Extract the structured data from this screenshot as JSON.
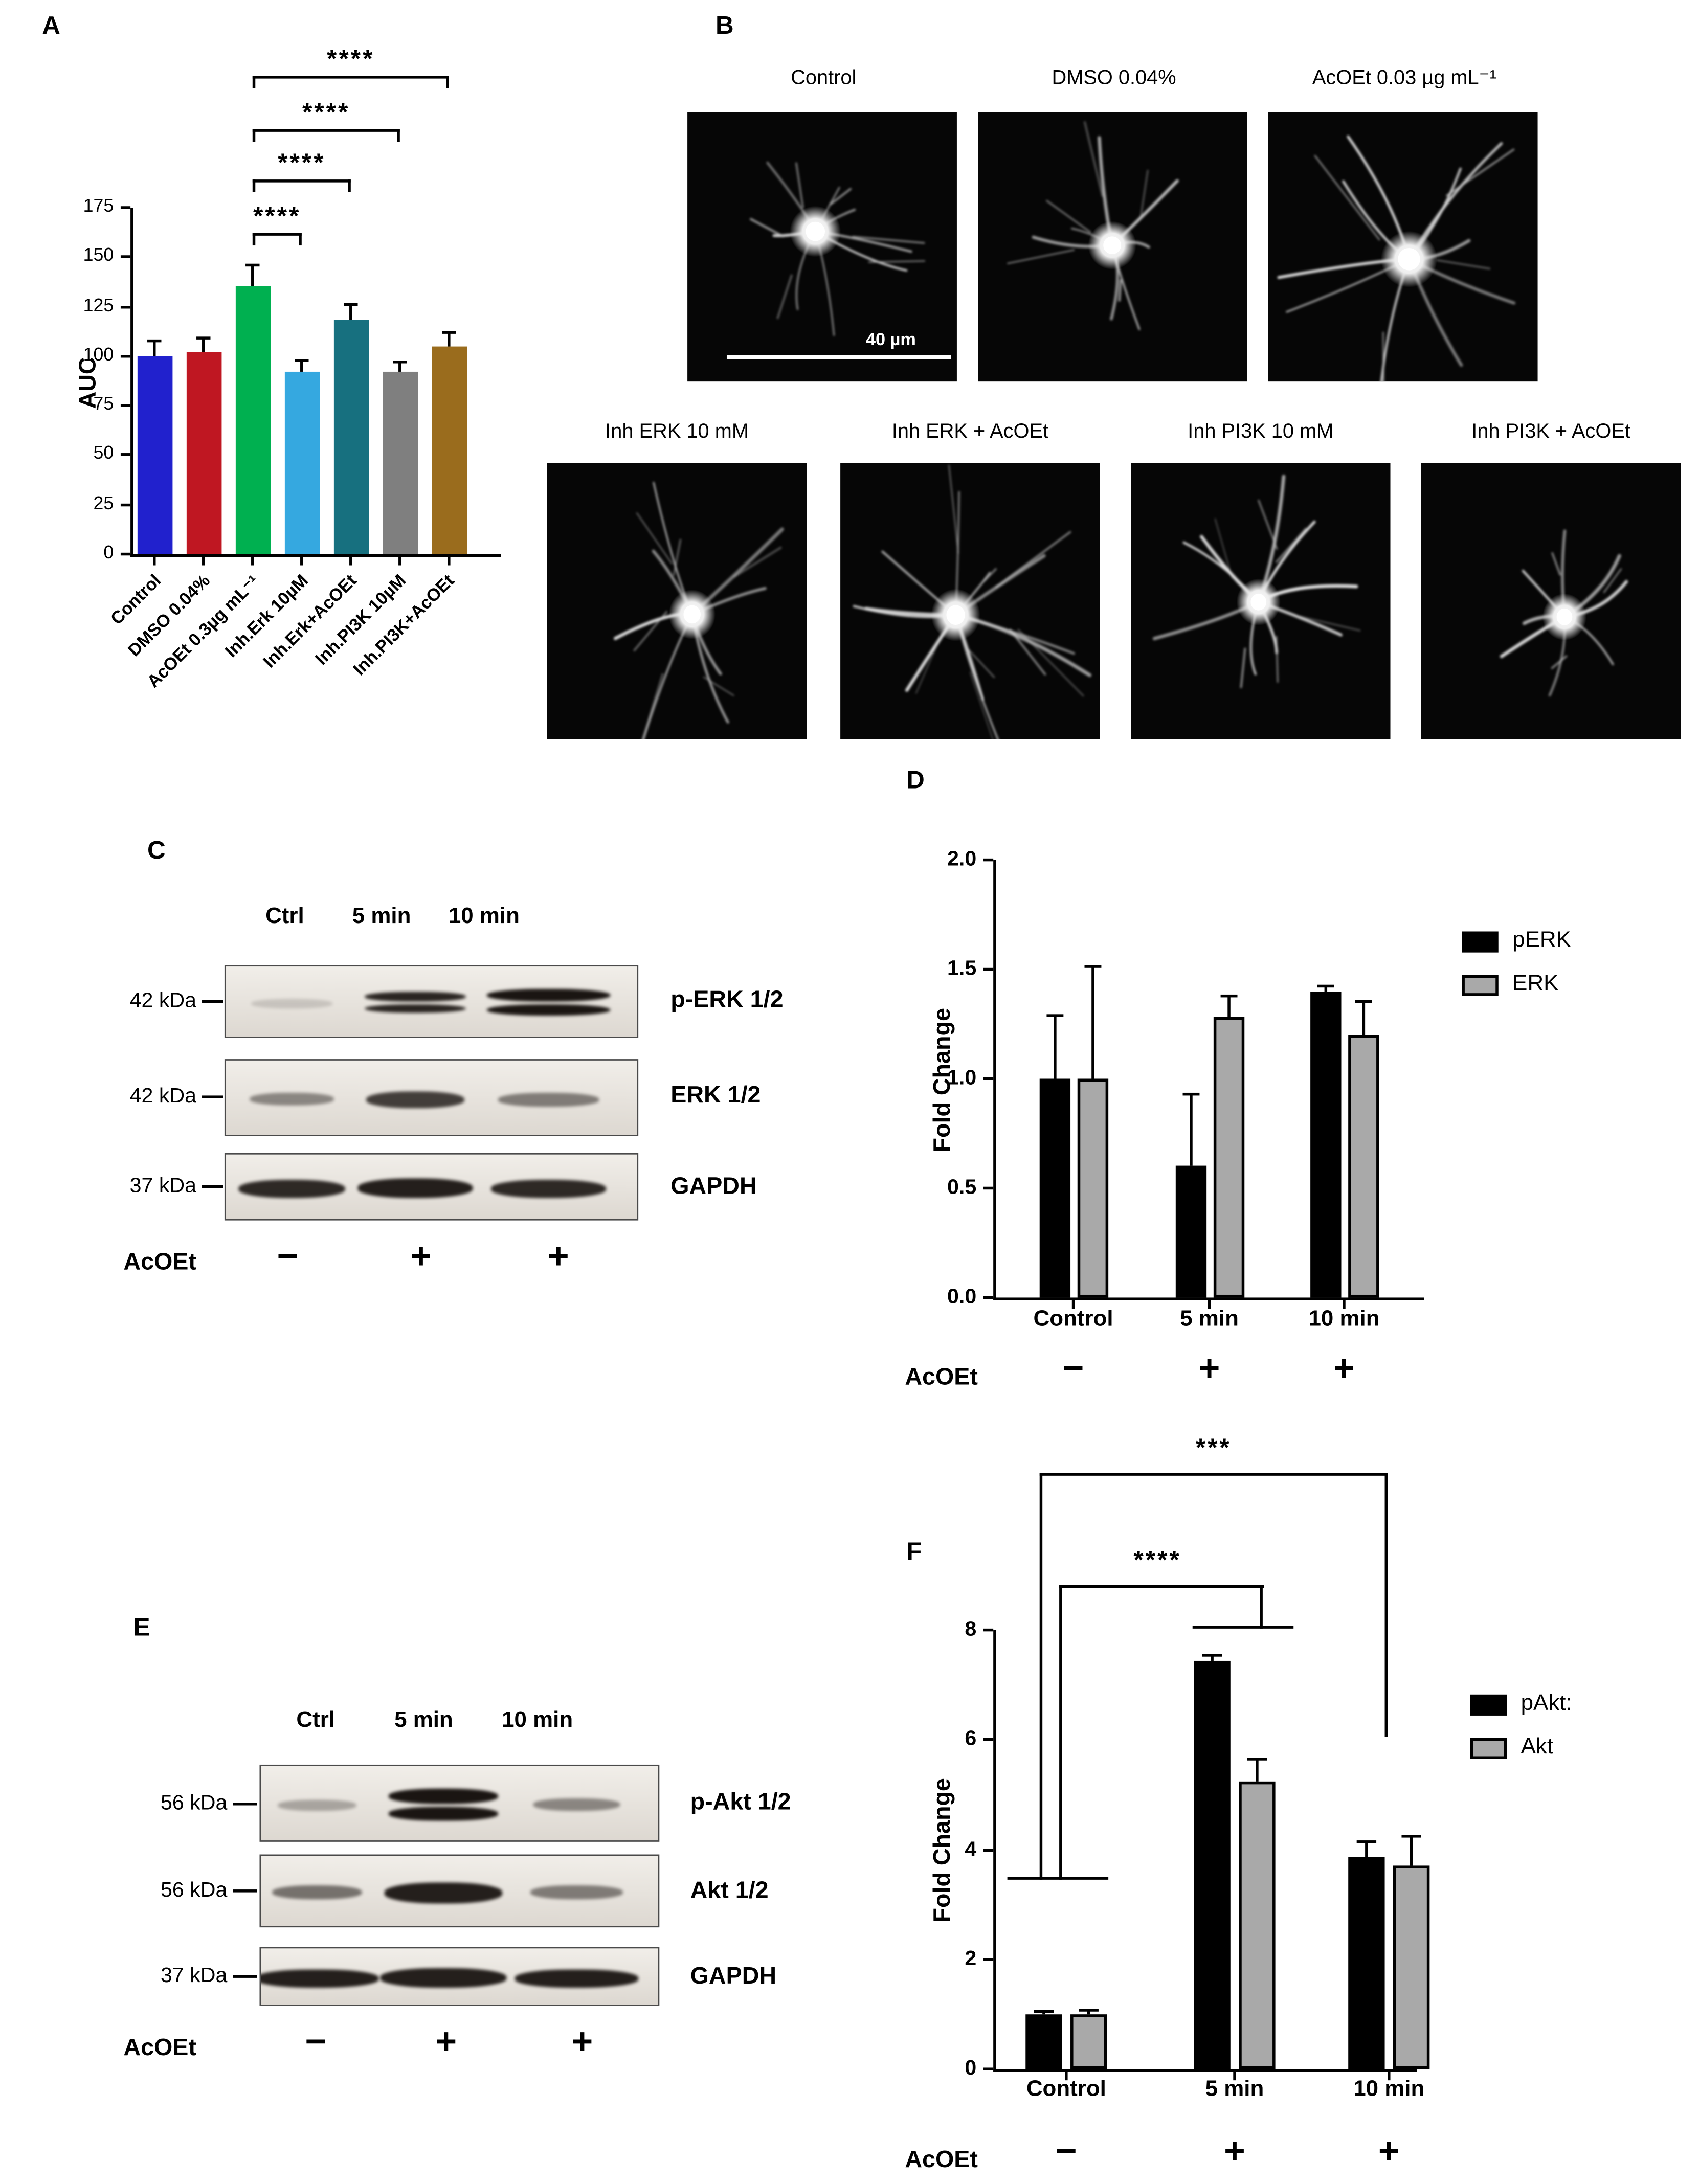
{
  "panels": {
    "a": "A",
    "b": "B",
    "c": "C",
    "d": "D",
    "e": "E",
    "f": "F"
  },
  "chart_data": [
    {
      "id": "A",
      "type": "bar",
      "title": "",
      "xlabel": "",
      "ylabel": "AUC",
      "ylim": [
        0,
        175
      ],
      "yticks": [
        "0",
        "25",
        "50",
        "75",
        "100",
        "125",
        "150",
        "175"
      ],
      "categories": [
        "Control",
        "DMSO 0.04%",
        "AcOEt 0.3µg mL⁻¹",
        "Inh.Erk 10µM",
        "Inh.Erk+AcOEt",
        "Inh.PI3K 10µM",
        "Inh.PI3K+AcOEt"
      ],
      "values": [
        100,
        102,
        135,
        92,
        118,
        92,
        105
      ],
      "errors": [
        8,
        7,
        11,
        6,
        8,
        5,
        7
      ],
      "bar_colors": [
        "#2121cd",
        "#bf1722",
        "#00b050",
        "#35a8e0",
        "#17707f",
        "#7f7f7f",
        "#9a6c1d"
      ],
      "grid": false,
      "significance": [
        {
          "from": "AcOEt 0.3µg mL⁻¹",
          "to": "Inh.Erk 10µM",
          "label": "****"
        },
        {
          "from": "AcOEt 0.3µg mL⁻¹",
          "to": "Inh.Erk+AcOEt",
          "label": "****"
        },
        {
          "from": "AcOEt 0.3µg mL⁻¹",
          "to": "Inh.PI3K 10µM",
          "label": "****"
        },
        {
          "from": "AcOEt 0.3µg mL⁻¹",
          "to": "Inh.PI3K+AcOEt",
          "label": "****"
        }
      ]
    },
    {
      "id": "D",
      "type": "bar",
      "title": "",
      "xlabel": "",
      "ylabel": "Fold Change",
      "ylim": [
        0,
        2
      ],
      "yticks": [
        "0.0",
        "0.5",
        "1.0",
        "1.5",
        "2.0"
      ],
      "categories": [
        "Control",
        "5 min",
        "10 min"
      ],
      "series": [
        {
          "name": "pERK",
          "color": "#000000",
          "values": [
            1.0,
            0.6,
            1.4
          ],
          "errors": [
            0.29,
            0.33,
            0.02
          ]
        },
        {
          "name": "ERK",
          "color": "#a9a9a9",
          "values": [
            1.0,
            1.28,
            1.2
          ],
          "errors": [
            0.51,
            0.1,
            0.15
          ]
        }
      ],
      "grid": false,
      "legend_position": "right",
      "treatment_label": "AcOEt",
      "treatment_signs": [
        "−",
        "+",
        "+"
      ]
    },
    {
      "id": "F",
      "type": "bar",
      "title": "",
      "xlabel": "",
      "ylabel": "Fold Change",
      "ylim": [
        0,
        8
      ],
      "yticks": [
        "0",
        "2",
        "4",
        "6",
        "8"
      ],
      "categories": [
        "Control",
        "5 min",
        "10 min"
      ],
      "series": [
        {
          "name": "pAkt:",
          "color": "#000000",
          "values": [
            1.0,
            7.45,
            3.85
          ],
          "errors": [
            0.06,
            0.1,
            0.3
          ]
        },
        {
          "name": "Akt",
          "color": "#a9a9a9",
          "values": [
            1.0,
            5.25,
            3.7
          ],
          "errors": [
            0.08,
            0.4,
            0.55
          ]
        }
      ],
      "grid": false,
      "legend_position": "right",
      "significance": [
        {
          "from": "Control",
          "to": "5 min",
          "label": "****"
        },
        {
          "from": "Control",
          "to": "10 min",
          "label": "***"
        }
      ],
      "treatment_label": "AcOEt",
      "treatment_signs": [
        "−",
        "+",
        "+"
      ]
    }
  ],
  "panelB": {
    "captions_top": [
      "Control",
      "DMSO 0.04%",
      "AcOEt 0.03 µg mL⁻¹"
    ],
    "captions_bottom": [
      "Inh ERK 10 mM",
      "Inh ERK + AcOEt",
      "Inh PI3K 10 mM",
      "Inh PI3K + AcOEt"
    ],
    "scale_bar_label": "40 µm"
  },
  "panelC": {
    "lane_headers": [
      "Ctrl",
      "5 min",
      "10 min"
    ],
    "rows": [
      {
        "weight": "42 kDa",
        "protein": "p-ERK 1/2"
      },
      {
        "weight": "42 kDa",
        "protein": "ERK 1/2"
      },
      {
        "weight": "37 kDa",
        "protein": "GAPDH"
      }
    ],
    "treatment_label": "AcOEt",
    "treatment_signs": [
      "−",
      "+",
      "+"
    ]
  },
  "panelE": {
    "lane_headers": [
      "Ctrl",
      "5 min",
      "10 min"
    ],
    "rows": [
      {
        "weight": "56 kDa",
        "protein": "p-Akt 1/2"
      },
      {
        "weight": "56 kDa",
        "protein": "Akt 1/2"
      },
      {
        "weight": "37 kDa",
        "protein": "GAPDH"
      }
    ],
    "treatment_label": "AcOEt",
    "treatment_signs": [
      "−",
      "+",
      "+"
    ]
  }
}
